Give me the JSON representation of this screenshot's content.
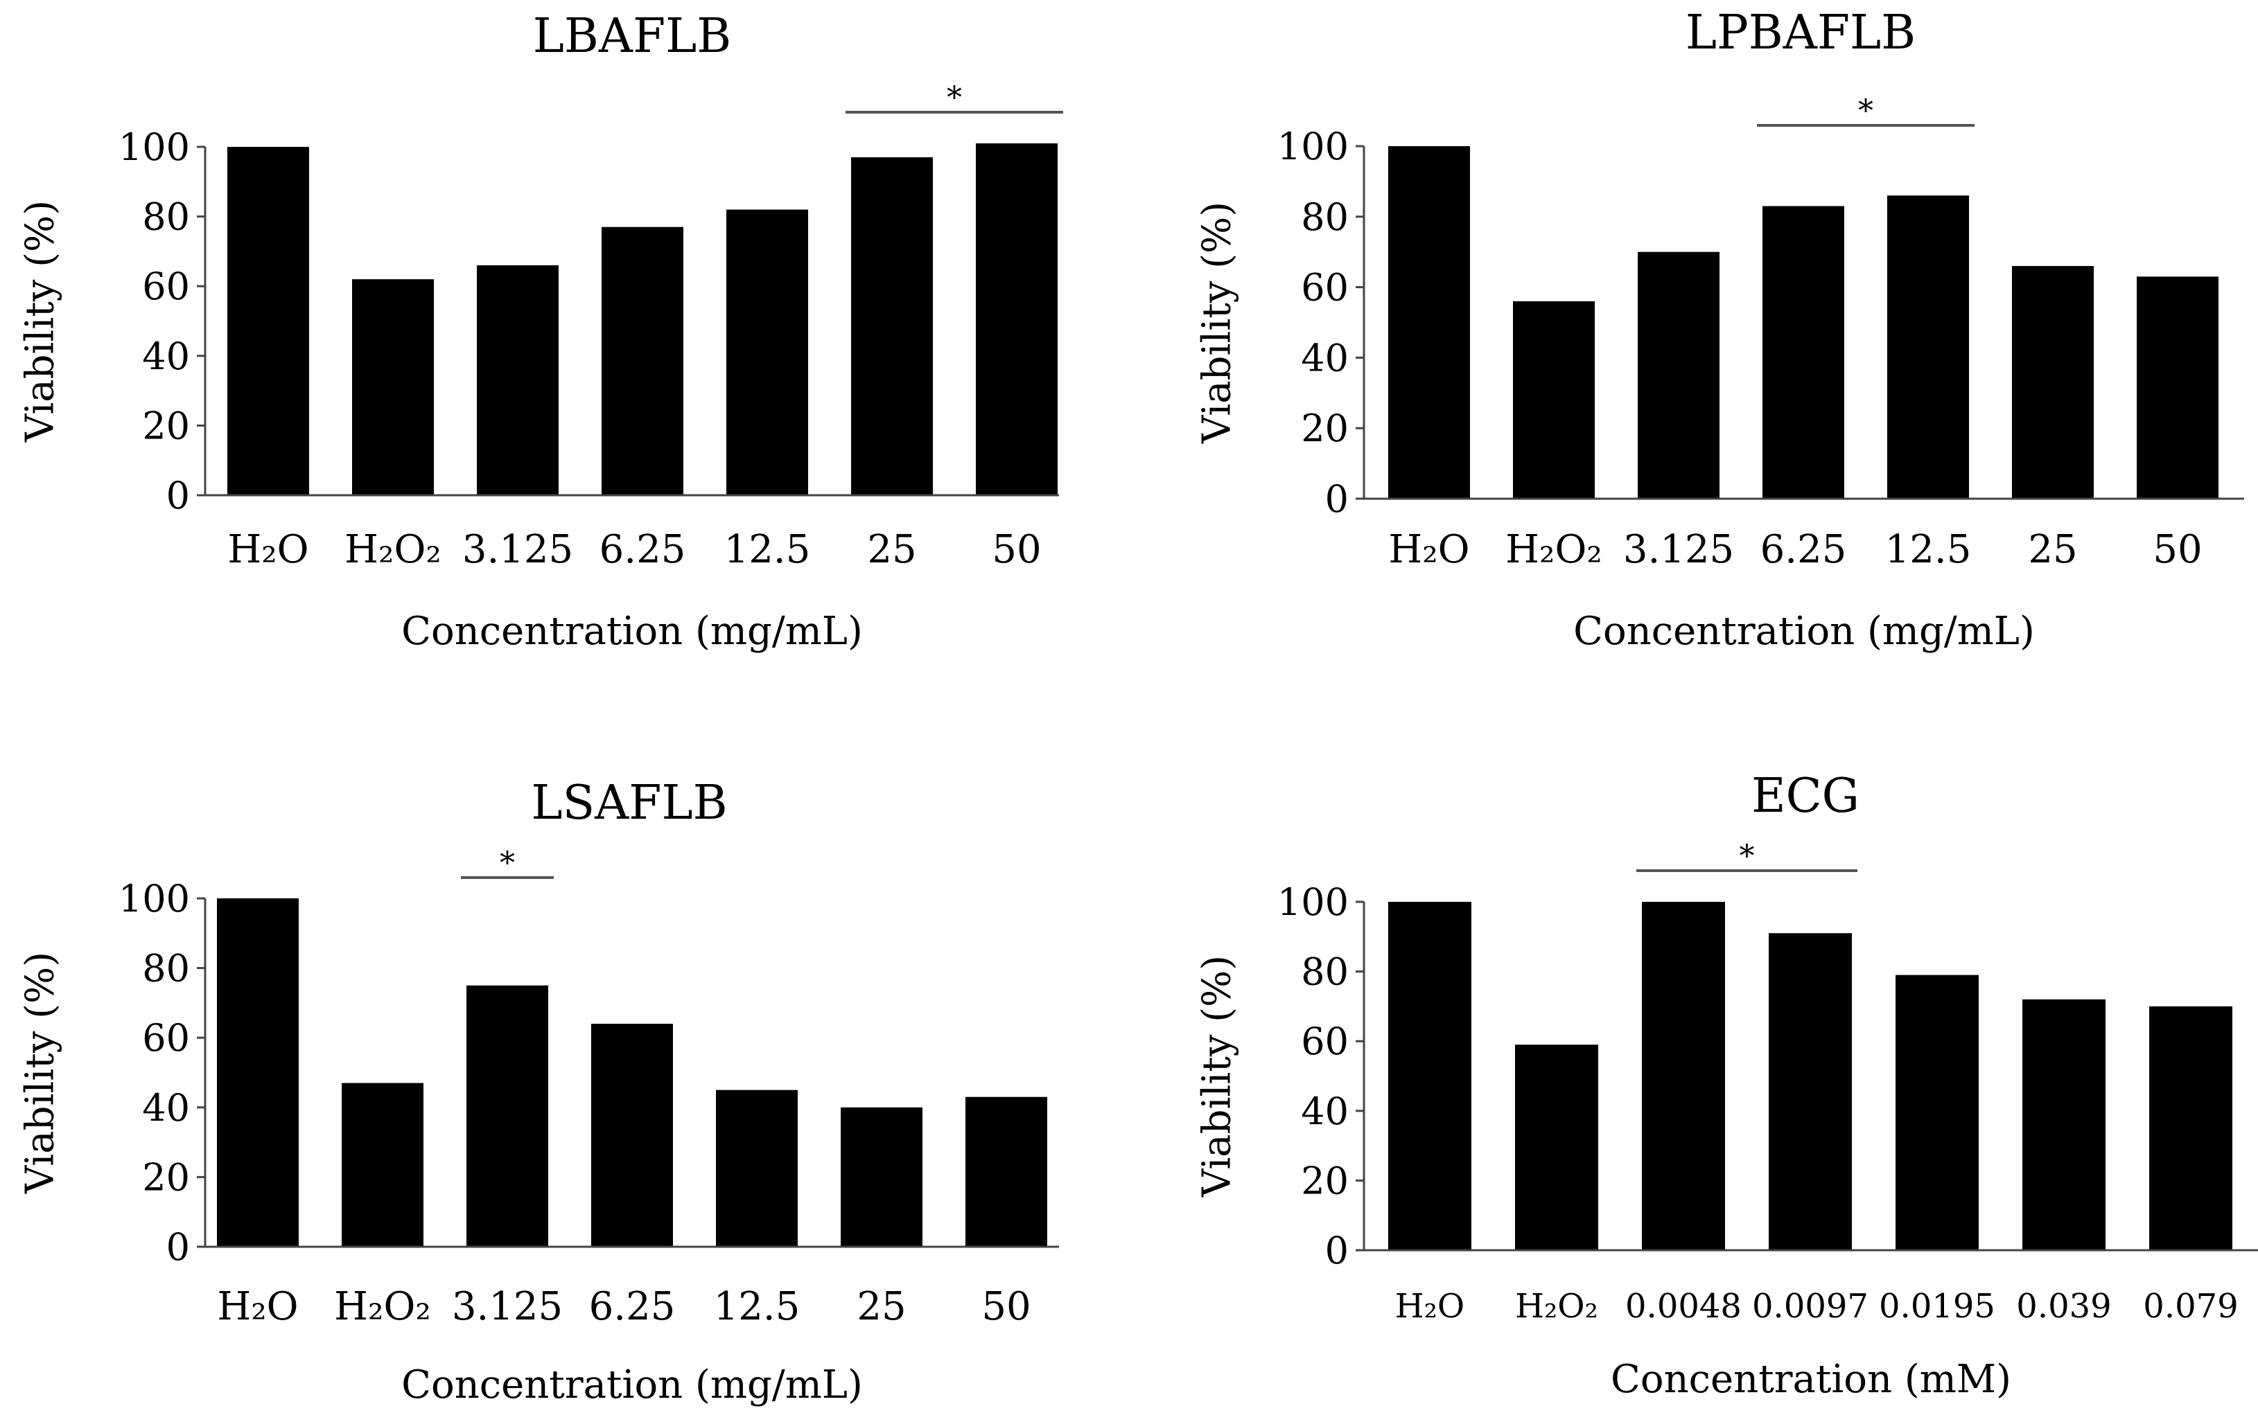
{
  "chart_data": [
    {
      "type": "bar",
      "title": "LBAFLB",
      "categories": [
        "H₂O",
        "H₂O₂",
        "3.125",
        "6.25",
        "12.5",
        "25",
        "50"
      ],
      "values": [
        100,
        62,
        66,
        77,
        82,
        97,
        101
      ],
      "xlabel": "Concentration (mg/mL)",
      "ylabel": "Viability (%)",
      "ylim": [
        0,
        100
      ],
      "yticks": [
        0,
        20,
        40,
        60,
        80,
        100
      ],
      "significance": {
        "from": "25",
        "to": "50",
        "label": "*"
      }
    },
    {
      "type": "bar",
      "title": "LPBAFLB",
      "categories": [
        "H₂O",
        "H₂O₂",
        "3.125",
        "6.25",
        "12.5",
        "25",
        "50"
      ],
      "values": [
        100,
        56,
        70,
        83,
        86,
        66,
        63
      ],
      "xlabel": "Concentration (mg/mL)",
      "ylabel": "Viability (%)",
      "ylim": [
        0,
        100
      ],
      "yticks": [
        0,
        20,
        40,
        60,
        80,
        100
      ],
      "significance": {
        "from": "6.25",
        "to": "12.5",
        "label": "*"
      }
    },
    {
      "type": "bar",
      "title": "LSAFLB",
      "categories": [
        "H₂O",
        "H₂O₂",
        "3.125",
        "6.25",
        "12.5",
        "25",
        "50"
      ],
      "values": [
        100,
        47,
        75,
        64,
        45,
        40,
        43
      ],
      "xlabel": "Concentration (mg/mL)",
      "ylabel": "Viability (%)",
      "ylim": [
        0,
        100
      ],
      "yticks": [
        0,
        20,
        40,
        60,
        80,
        100
      ],
      "significance": {
        "from": "3.125",
        "to": "3.125",
        "label": "*"
      }
    },
    {
      "type": "bar",
      "title": "ECG",
      "categories": [
        "H₂O",
        "H₂O₂",
        "0.0048",
        "0.0097",
        "0.0195",
        "0.039",
        "0.079"
      ],
      "values": [
        100,
        59,
        100,
        91,
        79,
        72,
        70
      ],
      "xlabel": "Concentration (mM)",
      "ylabel": "Viability (%)",
      "ylim": [
        0,
        100
      ],
      "yticks": [
        0,
        20,
        40,
        60,
        80,
        100
      ],
      "significance": {
        "from": "0.0048",
        "to": "0.0097",
        "label": "*"
      }
    }
  ]
}
